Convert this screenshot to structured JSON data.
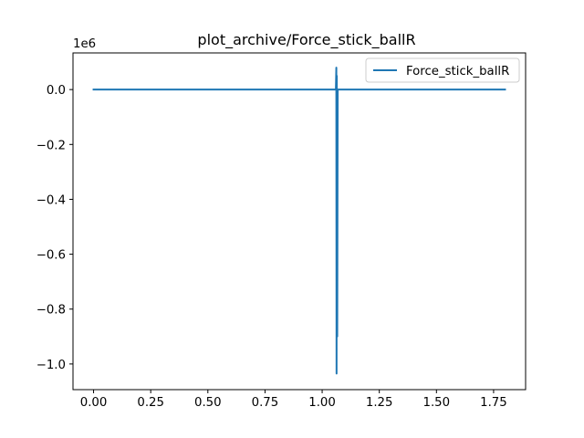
{
  "chart_data": {
    "type": "line",
    "title": "plot_archive/Force_stick_ballR",
    "xlabel": "",
    "ylabel": "",
    "y_offset_label": "1e6",
    "xlim": [
      -0.09,
      1.89
    ],
    "ylim": [
      -1.0935,
      0.1335
    ],
    "x_ticks": [
      0.0,
      0.25,
      0.5,
      0.75,
      1.0,
      1.25,
      1.5,
      1.75
    ],
    "x_tick_labels": [
      "0.00",
      "0.25",
      "0.50",
      "0.75",
      "1.00",
      "1.25",
      "1.50",
      "1.75"
    ],
    "y_ticks": [
      0.0,
      -0.2,
      -0.4,
      -0.6,
      -0.8,
      -1.0
    ],
    "y_tick_labels": [
      "0.0",
      "−0.2",
      "−0.4",
      "−0.6",
      "−0.8",
      "−1.0"
    ],
    "grid": false,
    "legend_position": "top-right",
    "series": [
      {
        "name": "Force_stick_ballR",
        "color": "#1f77b4",
        "x": [
          0.0,
          1.06,
          1.062,
          1.063,
          1.064,
          1.066,
          1.068,
          1.8
        ],
        "y": [
          0.0,
          0.0,
          0.08,
          -1.035,
          0.05,
          -0.9,
          0.0,
          0.0
        ]
      }
    ]
  }
}
